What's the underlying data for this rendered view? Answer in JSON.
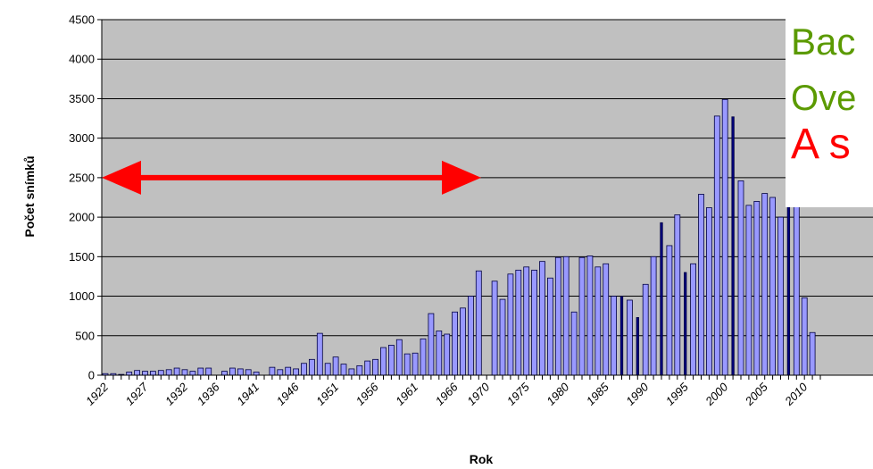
{
  "chart_data": {
    "type": "bar",
    "title": "",
    "xlabel": "Rok",
    "ylabel": "Počet snímků",
    "ylim": [
      0,
      4500
    ],
    "yticks": [
      0,
      500,
      1000,
      1500,
      2000,
      2500,
      3000,
      3500,
      4000,
      4500
    ],
    "xlim": [
      1922,
      2012
    ],
    "xtick_labels": [
      "1922",
      "1927",
      "1932",
      "1936",
      "1941",
      "1946",
      "1951",
      "1956",
      "1961",
      "1966",
      "1970",
      "1975",
      "1980",
      "1985",
      "1990",
      "1995",
      "2000",
      "2005",
      "2010"
    ],
    "grid": true,
    "plot_bg": "#c0c0c0",
    "bar_color": "#9999ff",
    "x": [
      1922,
      1923,
      1924,
      1925,
      1926,
      1927,
      1928,
      1929,
      1930,
      1931,
      1932,
      1933,
      1934,
      1935,
      1937,
      1938,
      1939,
      1940,
      1941,
      1943,
      1944,
      1945,
      1946,
      1947,
      1948,
      1949,
      1950,
      1951,
      1952,
      1953,
      1954,
      1955,
      1956,
      1957,
      1958,
      1959,
      1960,
      1961,
      1962,
      1963,
      1964,
      1965,
      1966,
      1967,
      1968,
      1969,
      1971,
      1972,
      1973,
      1974,
      1975,
      1976,
      1977,
      1978,
      1979,
      1980,
      1981,
      1982,
      1983,
      1984,
      1985,
      1986,
      1987,
      1988,
      1989,
      1990,
      1991,
      1992,
      1993,
      1994,
      1995,
      1996,
      1997,
      1998,
      1999,
      2000,
      2001,
      2002,
      2003,
      2004,
      2005,
      2006,
      2007,
      2008,
      2009,
      2010,
      2011
    ],
    "values": [
      20,
      20,
      10,
      40,
      60,
      50,
      50,
      60,
      70,
      90,
      70,
      50,
      90,
      90,
      50,
      90,
      80,
      70,
      40,
      100,
      70,
      100,
      80,
      150,
      200,
      530,
      150,
      230,
      140,
      80,
      120,
      180,
      200,
      350,
      380,
      450,
      270,
      280,
      460,
      780,
      560,
      520,
      800,
      850,
      1000,
      1320,
      1190,
      960,
      1280,
      1330,
      1370,
      1330,
      1440,
      1230,
      1490,
      1500,
      800,
      1490,
      1510,
      1370,
      1410,
      1000,
      1000,
      950,
      730,
      1150,
      1500,
      1930,
      1640,
      2030,
      1300,
      1410,
      2290,
      2120,
      3280,
      3490,
      3270,
      2460,
      2150,
      2200,
      2300,
      2250,
      2000,
      2150,
      2200,
      980,
      540
    ],
    "dark_bars": [
      1987,
      1989,
      1992,
      1995,
      2001,
      2008
    ],
    "annotations": [
      {
        "type": "double-arrow",
        "color": "#ff0000",
        "from_x": 1922,
        "to_x": 1972,
        "y": 2500
      }
    ]
  },
  "overlay": {
    "lines": [
      {
        "text": "Bac",
        "color": "#5b9a00"
      },
      {
        "text": "Ove",
        "color": "#5b9a00"
      },
      {
        "text": "A s",
        "color": "#ff0000"
      }
    ]
  }
}
